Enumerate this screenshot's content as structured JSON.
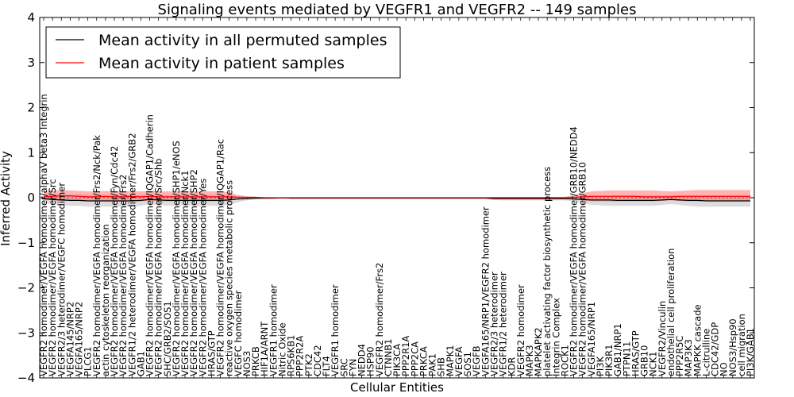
{
  "chart_data": {
    "type": "line",
    "title": "Signaling events mediated by VEGFR1 and VEGFR2 -- 149 samples",
    "xlabel": "Cellular Entities",
    "ylabel": "Inferred Activity",
    "ylim": [
      -4,
      4
    ],
    "yticks": [
      -4,
      -3,
      -2,
      -1,
      0,
      1,
      2,
      3,
      4
    ],
    "legend_position": "top-left",
    "categories": [
      "VEGFR2 homodimer/VEGFA homodimer/alphaV beta3 Integrin",
      "VEGFR2 homodimer/VEGFA homodimer/Src",
      "VEGFR2/3 heterodimer/VEGFC homodimer",
      "VEGFA145/NRP2",
      "VEGFA165/NRP2",
      "PLCG1",
      "VEGFR2 homodimer/VEGFA homodimer/Frs2/Nck/Pak",
      "actin cytoskeleton reorganization",
      "VEGFR2 homodimer/VEGFA homodimer/Fyn/Cdc42",
      "VEGFR2 homodimer/VEGFA homodimer/Frs2",
      "VEGFR1/2 heterodimer/VEGFA homodimer/Frs2/GRB2",
      "GAB1",
      "VEGFR2 homodimer/VEGFA homodimer/IQGAP1/Cadherin",
      "VEGFR2 homodimer/VEGFA homodimer/Src/Shb",
      "SHC/GRB2/SOS1",
      "VEGFR2 homodimer/VEGFA homodimer/SHP1/eNOS",
      "VEGFR2 homodimer/VEGFA homodimer/Nck1",
      "VEGFR2 homodimer/VEGFA homodimer/SHP2",
      "VEGFR2 homodimer/VEGFA homodimer/Yes",
      "HRAS/GTP",
      "VEGFR2 homodimer/VEGFA homodimer/IQGAP1/Rac",
      "reactive oxygen species metabolic process",
      "VEGFC homodimer",
      "NOS3",
      "PRKCB",
      "HIF1A/ARNT",
      "VEGFR1 homodimer",
      "Nitric Oxide",
      "RPS6KB1",
      "PPP2R2A",
      "PTK2",
      "CDC42",
      "FLT4",
      "VEGFR1 homodimer",
      "SRC",
      "FYN",
      "NEDD4",
      "HSP90",
      "VEGFR2 homodimer/Frs2",
      "CTNNB1",
      "PIK3CA",
      "PPP2R1A",
      "PPP2CA",
      "PRKCA",
      "PAK1",
      "SHB",
      "MAPK1",
      "VEGFA",
      "SOS1",
      "VEGFB",
      "VEGFA165/NRP1/VEGFR2 homodimer",
      "VEGFR2/3 heterodimer",
      "VEGFR1/2 heterodimer",
      "KDR",
      "VEGFR2 homodimer",
      "MAPK3",
      "MAPKAPK2",
      "platelet activating factor biosynthetic process",
      "Integrin Complex",
      "ROCK1",
      "VEGFR2 homodimer/VEGFA homodimer/GRB10/NEDD4",
      "VEGFR2 homodimer/VEGFA homodimer/GRB10",
      "VEGFA165/NRP1",
      "PI3K",
      "PIK3R1",
      "GAB1/NRP1",
      "PTPN11",
      "HRAS/GTP",
      "GRB10",
      "NCK1",
      "VEGFR2/Vinculin",
      "endothelial cell proliferation",
      "PPP2R5C",
      "MAP3K3",
      "MAPKK cascade",
      "L-citrulline",
      "CDC42/GDP",
      "NO",
      "NOS3/Hsp90",
      "cell migration",
      "PI3K/GAB1"
    ],
    "series": [
      {
        "name": "Mean activity in all permuted samples",
        "color": "#000000",
        "values": [
          -0.02,
          -0.04,
          -0.05,
          -0.06,
          -0.06,
          -0.07,
          -0.07,
          -0.07,
          -0.07,
          -0.07,
          -0.07,
          -0.06,
          -0.04,
          -0.05,
          -0.06,
          -0.06,
          -0.06,
          -0.06,
          -0.06,
          -0.06,
          -0.06,
          -0.05,
          -0.03,
          -0.02,
          -0.01,
          -0.01,
          -0.01,
          0.0,
          -0.01,
          -0.01,
          -0.01,
          -0.01,
          -0.01,
          -0.01,
          -0.01,
          -0.01,
          -0.01,
          -0.01,
          -0.01,
          -0.01,
          -0.01,
          -0.01,
          -0.01,
          -0.01,
          -0.01,
          -0.01,
          -0.01,
          -0.01,
          -0.01,
          -0.01,
          -0.01,
          -0.02,
          -0.02,
          -0.02,
          -0.02,
          -0.02,
          -0.02,
          -0.02,
          -0.02,
          -0.02,
          -0.03,
          -0.04,
          -0.05,
          -0.05,
          -0.05,
          -0.06,
          -0.06,
          -0.06,
          -0.06,
          -0.06,
          -0.05,
          -0.04,
          -0.05,
          -0.06,
          -0.06,
          -0.07,
          -0.07,
          -0.07,
          -0.07,
          -0.07,
          -0.07
        ]
      },
      {
        "name": "Mean activity in patient samples",
        "color": "#ff0000",
        "values": [
          0.02,
          0.03,
          0.04,
          0.04,
          0.03,
          0.02,
          0.02,
          0.03,
          0.02,
          0.02,
          0.03,
          0.02,
          0.03,
          0.02,
          0.02,
          0.02,
          0.02,
          0.02,
          0.02,
          0.02,
          0.02,
          0.02,
          0.01,
          0.01,
          0.01,
          0.0,
          0.0,
          0.0,
          0.0,
          0.0,
          0.0,
          0.0,
          0.0,
          0.0,
          0.0,
          0.0,
          0.0,
          0.0,
          0.0,
          0.0,
          0.0,
          0.0,
          0.0,
          0.0,
          0.0,
          0.0,
          0.0,
          0.0,
          0.0,
          0.0,
          0.0,
          0.0,
          0.0,
          0.0,
          0.0,
          0.0,
          0.0,
          0.0,
          0.0,
          0.0,
          0.01,
          0.02,
          0.03,
          0.03,
          0.03,
          0.03,
          0.03,
          0.03,
          0.02,
          0.02,
          0.02,
          0.02,
          0.03,
          0.03,
          0.03,
          0.03,
          0.03,
          0.03,
          0.03,
          0.03,
          0.03
        ]
      }
    ],
    "permuted_band": {
      "lower": [
        -0.12,
        -0.14,
        -0.16,
        -0.18,
        -0.18,
        -0.2,
        -0.2,
        -0.2,
        -0.2,
        -0.2,
        -0.2,
        -0.18,
        -0.14,
        -0.16,
        -0.18,
        -0.18,
        -0.18,
        -0.18,
        -0.18,
        -0.18,
        -0.18,
        -0.16,
        -0.1,
        -0.06,
        -0.04,
        -0.04,
        -0.03,
        -0.03,
        -0.03,
        -0.03,
        -0.03,
        -0.03,
        -0.03,
        -0.03,
        -0.03,
        -0.03,
        -0.03,
        -0.03,
        -0.03,
        -0.03,
        -0.03,
        -0.03,
        -0.03,
        -0.03,
        -0.03,
        -0.03,
        -0.03,
        -0.03,
        -0.03,
        -0.03,
        -0.03,
        -0.05,
        -0.06,
        -0.06,
        -0.06,
        -0.06,
        -0.06,
        -0.06,
        -0.06,
        -0.06,
        -0.08,
        -0.12,
        -0.16,
        -0.17,
        -0.18,
        -0.18,
        -0.18,
        -0.18,
        -0.18,
        -0.18,
        -0.16,
        -0.14,
        -0.16,
        -0.18,
        -0.2,
        -0.2,
        -0.2,
        -0.2,
        -0.2,
        -0.2,
        -0.2
      ],
      "upper": [
        0.08,
        0.08,
        0.08,
        0.07,
        0.07,
        0.06,
        0.06,
        0.06,
        0.06,
        0.06,
        0.06,
        0.06,
        0.07,
        0.06,
        0.06,
        0.06,
        0.06,
        0.06,
        0.06,
        0.06,
        0.06,
        0.05,
        0.04,
        0.02,
        0.02,
        0.01,
        0.01,
        0.01,
        0.01,
        0.01,
        0.01,
        0.01,
        0.01,
        0.01,
        0.01,
        0.01,
        0.01,
        0.01,
        0.01,
        0.01,
        0.01,
        0.01,
        0.01,
        0.01,
        0.01,
        0.01,
        0.01,
        0.01,
        0.01,
        0.01,
        0.01,
        0.01,
        0.01,
        0.01,
        0.01,
        0.01,
        0.01,
        0.01,
        0.01,
        0.01,
        0.02,
        0.04,
        0.05,
        0.05,
        0.05,
        0.06,
        0.06,
        0.06,
        0.06,
        0.06,
        0.05,
        0.05,
        0.06,
        0.06,
        0.06,
        0.06,
        0.06,
        0.06,
        0.06,
        0.06,
        0.06
      ]
    },
    "patient_band": {
      "lower": [
        -0.05,
        -0.06,
        -0.07,
        -0.06,
        -0.07,
        -0.08,
        -0.08,
        -0.07,
        -0.08,
        -0.08,
        -0.07,
        -0.08,
        -0.07,
        -0.08,
        -0.08,
        -0.08,
        -0.08,
        -0.08,
        -0.08,
        -0.08,
        -0.08,
        -0.07,
        -0.03,
        -0.02,
        -0.01,
        -0.01,
        -0.01,
        -0.01,
        -0.01,
        -0.01,
        -0.01,
        -0.01,
        -0.01,
        -0.01,
        -0.01,
        -0.01,
        -0.01,
        -0.01,
        -0.01,
        -0.01,
        -0.01,
        -0.01,
        -0.01,
        -0.01,
        -0.01,
        -0.01,
        -0.01,
        -0.01,
        -0.01,
        -0.01,
        -0.01,
        -0.02,
        -0.02,
        -0.02,
        -0.02,
        -0.02,
        -0.02,
        -0.02,
        -0.02,
        -0.02,
        -0.04,
        -0.06,
        -0.08,
        -0.08,
        -0.08,
        -0.08,
        -0.08,
        -0.08,
        -0.08,
        -0.08,
        -0.07,
        -0.06,
        -0.07,
        -0.08,
        -0.08,
        -0.08,
        -0.08,
        -0.08,
        -0.08,
        -0.08,
        -0.08
      ],
      "upper": [
        0.14,
        0.16,
        0.17,
        0.16,
        0.15,
        0.14,
        0.14,
        0.15,
        0.14,
        0.14,
        0.15,
        0.14,
        0.15,
        0.14,
        0.14,
        0.14,
        0.14,
        0.14,
        0.14,
        0.14,
        0.14,
        0.12,
        0.06,
        0.03,
        0.02,
        0.01,
        0.01,
        0.01,
        0.01,
        0.01,
        0.01,
        0.01,
        0.01,
        0.01,
        0.01,
        0.01,
        0.01,
        0.01,
        0.01,
        0.01,
        0.01,
        0.01,
        0.01,
        0.01,
        0.01,
        0.01,
        0.01,
        0.01,
        0.01,
        0.01,
        0.01,
        0.02,
        0.02,
        0.02,
        0.02,
        0.02,
        0.02,
        0.02,
        0.02,
        0.02,
        0.06,
        0.1,
        0.14,
        0.15,
        0.16,
        0.16,
        0.16,
        0.16,
        0.16,
        0.16,
        0.15,
        0.14,
        0.15,
        0.16,
        0.17,
        0.17,
        0.17,
        0.17,
        0.17,
        0.17,
        0.17
      ]
    }
  }
}
